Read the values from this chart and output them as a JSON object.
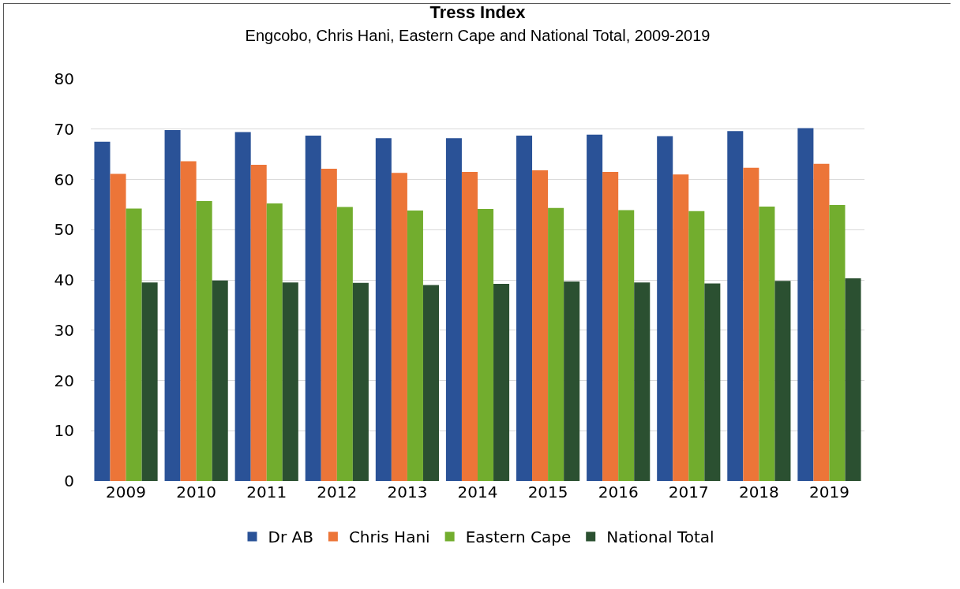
{
  "chart_data": {
    "type": "bar",
    "title": "Tress Index",
    "subtitle": "Engcobo, Chris Hani, Eastern Cape and National Total, 2009-2019",
    "categories": [
      "2009",
      "2010",
      "2011",
      "2012",
      "2013",
      "2014",
      "2015",
      "2016",
      "2017",
      "2018",
      "2019"
    ],
    "series": [
      {
        "name": "Dr AB",
        "color": "#2a5297",
        "values": [
          67.5,
          69.8,
          69.4,
          68.7,
          68.2,
          68.2,
          68.7,
          68.9,
          68.6,
          69.6,
          70.2
        ]
      },
      {
        "name": "Chris Hani",
        "color": "#ec7538",
        "values": [
          61.1,
          63.6,
          62.9,
          62.1,
          61.3,
          61.5,
          61.8,
          61.5,
          61.0,
          62.3,
          63.1
        ]
      },
      {
        "name": "Eastern Cape",
        "color": "#72ad2e",
        "values": [
          54.2,
          55.7,
          55.2,
          54.5,
          53.8,
          54.1,
          54.3,
          53.9,
          53.7,
          54.6,
          54.9
        ]
      },
      {
        "name": "National Total",
        "color": "#2b5031",
        "values": [
          39.5,
          39.9,
          39.5,
          39.4,
          39.0,
          39.2,
          39.7,
          39.5,
          39.3,
          39.8,
          40.3
        ]
      }
    ],
    "ylim": [
      0,
      80
    ],
    "yticks": [
      0,
      10,
      20,
      30,
      40,
      50,
      60,
      70,
      80
    ],
    "grid": "y",
    "legend": "bottom"
  }
}
